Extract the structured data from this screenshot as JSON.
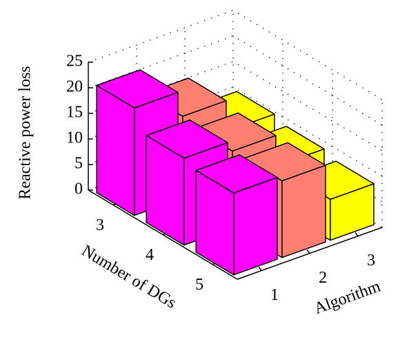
{
  "chart_data": {
    "type": "bar3d",
    "xlabel": "Number of DGs",
    "ylabel": "Algorithm",
    "zlabel": "Reactive power loss",
    "categories": [
      "3",
      "4",
      "5"
    ],
    "series": [
      {
        "name": "1",
        "color": "#ff00ff",
        "values": [
          21,
          17,
          16
        ]
      },
      {
        "name": "2",
        "color": "#ff8070",
        "values": [
          16,
          15,
          15
        ]
      },
      {
        "name": "3",
        "color": "#ffff00",
        "values": [
          10,
          9,
          8
        ]
      }
    ],
    "zlim": [
      0,
      25
    ],
    "zticks": [
      0,
      5,
      10,
      15,
      20,
      25
    ],
    "grid": true
  }
}
